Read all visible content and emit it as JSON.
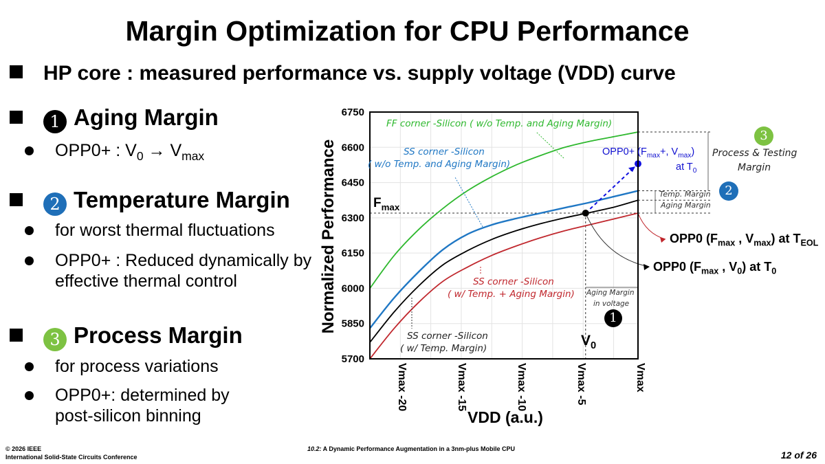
{
  "title": "Margin Optimization for CPU Performance",
  "subtitle": "HP core : measured performance vs. supply voltage (VDD) curve",
  "sections": [
    {
      "number": "1",
      "heading": "Aging Margin",
      "color": "#000000",
      "bullets": [
        {
          "pre": "OPP0+ : V",
          "sub1": "0",
          "mid": " → V",
          "sub2": "max"
        }
      ]
    },
    {
      "number": "2",
      "heading": "Temperature Margin",
      "color": "#1f6fb8",
      "bullets": [
        "for worst thermal fluctuations",
        "OPP0+ : Reduced dynamically by effective thermal control"
      ]
    },
    {
      "number": "3",
      "heading": "Process Margin",
      "color": "#7dc242",
      "bullets": [
        "for process variations",
        "OPP0+: determined by post-silicon binning"
      ]
    }
  ],
  "chart_data": {
    "type": "line",
    "xlabel": "VDD (a.u.)",
    "ylabel": "Normalized Performance",
    "xlim": [
      -22,
      0
    ],
    "ylim": [
      5700,
      6750
    ],
    "grid": true,
    "yticks": [
      5700,
      5850,
      6000,
      6150,
      6300,
      6450,
      6600,
      6750
    ],
    "xticks": [
      {
        "value": -20,
        "label": "Vmax -20",
        "main": "V",
        "sub": "max",
        "suffix": " -20"
      },
      {
        "value": -15,
        "label": "Vmax -15",
        "main": "V",
        "sub": "max",
        "suffix": " -15"
      },
      {
        "value": -10,
        "label": "Vmax -10",
        "main": "V",
        "sub": "max",
        "suffix": " -10"
      },
      {
        "value": -5,
        "label": "Vmax -5",
        "main": "V",
        "sub": "max",
        "suffix": " -5"
      },
      {
        "value": 0,
        "label": "Vmax",
        "main": "V",
        "sub": "max",
        "suffix": ""
      }
    ],
    "x": [
      -22,
      -20,
      -18,
      -16,
      -14,
      -12,
      -10,
      -8,
      -6,
      -4,
      -2,
      0
    ],
    "series": [
      {
        "name": "FF corner -Silicon ( w/o Temp. and Aging Margin)",
        "color": "#2eb82e",
        "values": [
          6000,
          6140,
          6250,
          6340,
          6415,
          6475,
          6525,
          6565,
          6600,
          6625,
          6645,
          6665
        ]
      },
      {
        "name": "SS corner -Silicon ( w/o Temp. and Aging Margin)",
        "color": "#1f77c4",
        "values": [
          5830,
          5960,
          6070,
          6165,
          6230,
          6270,
          6297,
          6320,
          6343,
          6365,
          6390,
          6415
        ]
      },
      {
        "name": "SS corner -Silicon ( w/ Temp. Margin)",
        "color": "#000000",
        "values": [
          5770,
          5900,
          6010,
          6100,
          6160,
          6208,
          6245,
          6275,
          6300,
          6322,
          6345,
          6375
        ]
      },
      {
        "name": "SS corner -Silicon ( w/ Temp. + Aging Margin)",
        "color": "#c0272d",
        "values": [
          5700,
          5830,
          5940,
          6030,
          6090,
          6140,
          6180,
          6215,
          6245,
          6270,
          6295,
          6320
        ]
      }
    ],
    "fmax": 6320,
    "v0": -4.3,
    "points": [
      {
        "name": "OPP0 (Fmax, V0) at T0",
        "x": -4.3,
        "y": 6320,
        "color": "#000000"
      },
      {
        "name": "OPP0+ (Fmax+, Vmax) at T0",
        "x": 0,
        "y": 6530,
        "color": "#1010e0"
      }
    ],
    "annotations": {
      "fmax_label": "F",
      "fmax_sub": "max",
      "v0_label": "V",
      "v0_sub": "0",
      "ff_label": "FF corner -Silicon  ( w/o Temp. and Aging Margin)",
      "ss_blue_1": "SS corner -Silicon",
      "ss_blue_2": "( w/o Temp. and Aging Margin)",
      "ss_red_1": "SS corner -Silicon",
      "ss_red_2": "( w/ Temp. + Aging Margin)",
      "ss_black_1": "SS corner -Silicon",
      "ss_black_2": "( w/ Temp. Margin)",
      "aging_voltage_1": "Aging Margin",
      "aging_voltage_2": "in voltage",
      "opp0plus_1": "OPP0+ (F",
      "opp0plus_sub1": "max",
      "opp0plus_2": "+, V",
      "opp0plus_sub2": "max",
      "opp0plus_3": ")",
      "opp0plus_at": "at T",
      "opp0plus_at_sub": "0",
      "process_1": "Process & Testing",
      "process_2": "Margin",
      "temp_margin": "Temp. Margin",
      "aging_margin": "Aging Margin",
      "opp0_eol": {
        "a": "OPP0 (F",
        "s1": "max",
        "b": " , V",
        "s2": "max",
        "c": ") at T",
        "s3": "EOL"
      },
      "opp0_t0": {
        "a": "OPP0 (F",
        "s1": "max",
        "b": " , V",
        "s2": "0",
        "c": ") at T",
        "s3": "0"
      },
      "badge1": "1",
      "badge2": "2",
      "badge3": "3"
    }
  },
  "footer": {
    "copyright": "© 2026 IEEE",
    "conference": "International Solid-State Circuits Conference",
    "paper": "10.2: A Dynamic Performance Augmentation in a 3nm-plus Mobile CPU",
    "paper_num": "10.2:",
    "paper_title": " A Dynamic Performance Augmentation in a 3nm-plus Mobile CPU",
    "page": "12 of 26"
  }
}
